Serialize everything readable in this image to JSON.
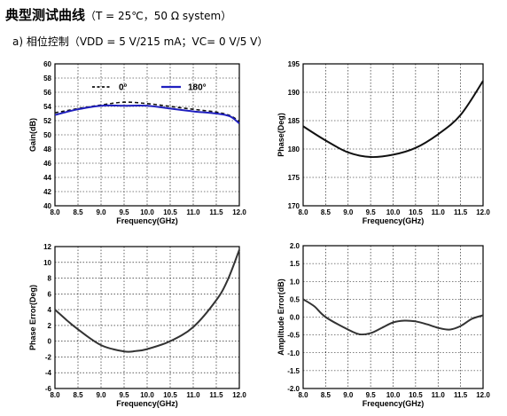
{
  "heading": {
    "title": "典型测试曲线",
    "conditions": "（T = 25℃，50 Ω system）"
  },
  "subheading": "a) 相位控制（VDD = 5 V/215 mA；VC= 0 V/5 V）",
  "colors": {
    "series_dark": "#111111",
    "series_blue": "#1f1fbf",
    "grid": "#000000"
  },
  "chart_data": [
    {
      "type": "line",
      "title": "",
      "xlabel": "Frequency(GHz)",
      "ylabel": "Gain(dB)",
      "xlim": [
        8.0,
        12.0
      ],
      "ylim": [
        40,
        60
      ],
      "xticks": [
        "8.0",
        "8.5",
        "9.0",
        "9.5",
        "10.0",
        "10.5",
        "11.0",
        "11.5",
        "12.0"
      ],
      "yticks": [
        "40",
        "42",
        "44",
        "46",
        "48",
        "50",
        "52",
        "54",
        "56",
        "58",
        "60"
      ],
      "grid": true,
      "legend": "top",
      "series": [
        {
          "name": "0°",
          "style": "dashed",
          "color": "#111111",
          "x": [
            8.0,
            8.5,
            9.0,
            9.5,
            10.0,
            10.5,
            11.0,
            11.5,
            11.8,
            12.0
          ],
          "y": [
            53.1,
            53.7,
            54.2,
            54.6,
            54.4,
            54.0,
            53.6,
            53.2,
            52.7,
            51.9
          ]
        },
        {
          "name": "180°",
          "style": "solid",
          "color": "#1f1fbf",
          "x": [
            8.0,
            8.5,
            9.0,
            9.5,
            10.0,
            10.5,
            11.0,
            11.5,
            11.8,
            12.0
          ],
          "y": [
            52.8,
            53.6,
            54.1,
            54.1,
            54.1,
            53.7,
            53.3,
            53.0,
            52.6,
            51.6
          ]
        }
      ]
    },
    {
      "type": "line",
      "title": "",
      "xlabel": "Frequency(GHz)",
      "ylabel": "Phase(Deg)",
      "xlim": [
        8.0,
        12.0
      ],
      "ylim": [
        170,
        195
      ],
      "xticks": [
        "8.0",
        "8.5",
        "9.0",
        "9.5",
        "10.0",
        "10.5",
        "11.0",
        "11.5",
        "12.0"
      ],
      "yticks": [
        "170",
        "175",
        "180",
        "185",
        "190",
        "195"
      ],
      "grid": true,
      "series": [
        {
          "style": "solid",
          "color": "#111111",
          "x": [
            8.0,
            8.5,
            9.0,
            9.5,
            10.0,
            10.5,
            11.0,
            11.5,
            12.0
          ],
          "y": [
            184.0,
            181.5,
            179.4,
            178.6,
            179.0,
            180.2,
            182.6,
            186.0,
            192.0
          ]
        }
      ]
    },
    {
      "type": "line",
      "title": "",
      "xlabel": "Frequency(GHz)",
      "ylabel": "Phase Error(Deg)",
      "xlim": [
        8.0,
        12.0
      ],
      "ylim": [
        -6,
        12
      ],
      "xticks": [
        "8.0",
        "8.5",
        "9.0",
        "9.5",
        "10.0",
        "10.5",
        "11.0",
        "11.5",
        "12.0"
      ],
      "yticks": [
        "-6",
        "-4",
        "-2",
        "0",
        "2",
        "4",
        "6",
        "8",
        "10",
        "12"
      ],
      "grid": true,
      "series": [
        {
          "style": "solid",
          "color": "#333333",
          "x": [
            8.0,
            8.25,
            8.5,
            9.0,
            9.5,
            9.75,
            10.0,
            10.5,
            11.0,
            11.5,
            11.75,
            12.0
          ],
          "y": [
            4.0,
            2.7,
            1.5,
            -0.5,
            -1.3,
            -1.25,
            -1.0,
            0.0,
            1.8,
            5.2,
            7.8,
            11.6
          ]
        }
      ]
    },
    {
      "type": "line",
      "title": "",
      "xlabel": "Frequency(GHz)",
      "ylabel": "Amplitude Error(dB)",
      "xlim": [
        8.0,
        12.0
      ],
      "ylim": [
        -2.0,
        2.0
      ],
      "xticks": [
        "8.0",
        "8.5",
        "9.0",
        "9.5",
        "10.0",
        "10.5",
        "11.0",
        "11.5",
        "12.0"
      ],
      "yticks": [
        "-2.0",
        "-1.5",
        "-1.0",
        "-0.5",
        "0.0",
        "0.5",
        "1.0",
        "1.5",
        "2.0"
      ],
      "grid": true,
      "series": [
        {
          "style": "solid",
          "color": "#333333",
          "x": [
            8.0,
            8.25,
            8.5,
            9.0,
            9.25,
            9.5,
            9.75,
            10.0,
            10.25,
            10.5,
            10.75,
            11.0,
            11.25,
            11.5,
            11.75,
            12.0
          ],
          "y": [
            0.5,
            0.3,
            0.0,
            -0.35,
            -0.48,
            -0.45,
            -0.3,
            -0.15,
            -0.1,
            -0.12,
            -0.2,
            -0.3,
            -0.35,
            -0.25,
            -0.05,
            0.05
          ]
        }
      ]
    }
  ]
}
